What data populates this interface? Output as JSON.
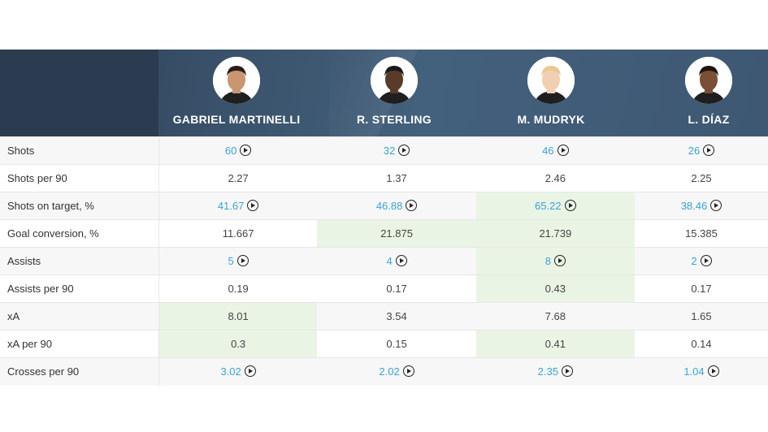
{
  "players": [
    {
      "name": "GABRIEL MARTINELLI",
      "avatar_icon": "player-photo",
      "skin": "#c99670",
      "hair": "#2a1d15"
    },
    {
      "name": "R. STERLING",
      "avatar_icon": "player-photo",
      "skin": "#5a3a28",
      "hair": "#1a1a1a"
    },
    {
      "name": "M. MUDRYK",
      "avatar_icon": "player-photo",
      "skin": "#f1cfb3",
      "hair": "#e9c98f"
    },
    {
      "name": "L. DÍAZ",
      "avatar_icon": "player-photo",
      "skin": "#7a4f35",
      "hair": "#1b1410"
    }
  ],
  "colors": {
    "link": "#3aa3d8",
    "highlight": "#e9f4e5",
    "header": "#3e5873"
  },
  "rows": [
    {
      "label": "Shots",
      "values": [
        "60",
        "32",
        "46",
        "26"
      ],
      "linked": true,
      "highlight": [
        false,
        false,
        false,
        false
      ]
    },
    {
      "label": "Shots per 90",
      "values": [
        "2.27",
        "1.37",
        "2.46",
        "2.25"
      ],
      "linked": false,
      "highlight": [
        false,
        false,
        false,
        false
      ]
    },
    {
      "label": "Shots on target, %",
      "values": [
        "41.67",
        "46.88",
        "65.22",
        "38.46"
      ],
      "linked": true,
      "highlight": [
        false,
        false,
        true,
        false
      ]
    },
    {
      "label": "Goal conversion, %",
      "values": [
        "11.667",
        "21.875",
        "21.739",
        "15.385"
      ],
      "linked": false,
      "highlight": [
        false,
        true,
        true,
        false
      ]
    },
    {
      "label": "Assists",
      "values": [
        "5",
        "4",
        "8",
        "2"
      ],
      "linked": true,
      "highlight": [
        false,
        false,
        true,
        false
      ]
    },
    {
      "label": "Assists per 90",
      "values": [
        "0.19",
        "0.17",
        "0.43",
        "0.17"
      ],
      "linked": false,
      "highlight": [
        false,
        false,
        true,
        false
      ]
    },
    {
      "label": "xA",
      "values": [
        "8.01",
        "3.54",
        "7.68",
        "1.65"
      ],
      "linked": false,
      "highlight": [
        true,
        false,
        false,
        false
      ]
    },
    {
      "label": "xA per 90",
      "values": [
        "0.3",
        "0.15",
        "0.41",
        "0.14"
      ],
      "linked": false,
      "highlight": [
        true,
        false,
        true,
        false
      ]
    },
    {
      "label": "Crosses per 90",
      "values": [
        "3.02",
        "2.02",
        "2.35",
        "1.04"
      ],
      "linked": true,
      "highlight": [
        false,
        false,
        false,
        false
      ]
    }
  ]
}
